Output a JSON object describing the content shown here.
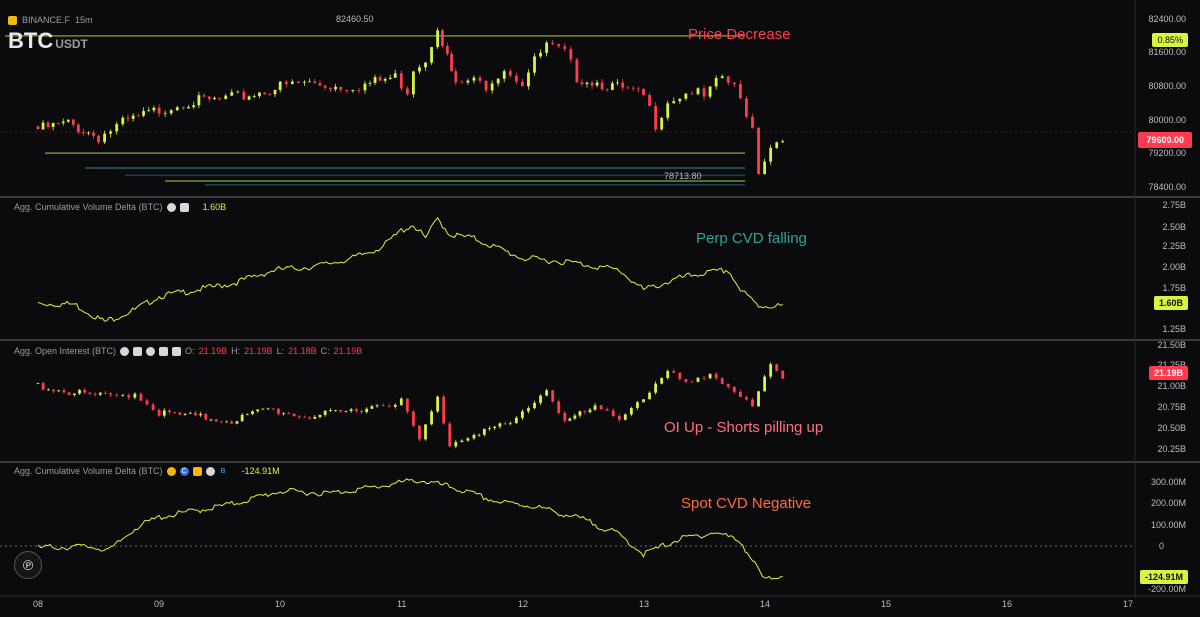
{
  "header": {
    "exchange": "BINANCE.F",
    "interval": "15m",
    "symbol_base": "BTC",
    "symbol_quote": "USDT"
  },
  "price_pane": {
    "high_label": "82460.50",
    "low_label": "78713.80",
    "axis_labels": [
      "82400.00",
      "81600.00",
      "80800.00",
      "80000.00",
      "79200.00",
      "78400.00"
    ],
    "current_tag": "79600.00",
    "pct_tag": "0.85%",
    "annotation": "Price Decrease"
  },
  "cvd_perp_pane": {
    "title": "Agg. Cumulative Volume Delta (BTC)",
    "value": "1.60B",
    "axis_labels": [
      "2.75B",
      "2.50B",
      "2.25B",
      "2.00B",
      "1.75B",
      "1.25B"
    ],
    "current_tag": "1.60B",
    "annotation": "Perp CVD falling"
  },
  "oi_pane": {
    "title": "Agg. Open Interest (BTC)",
    "o_label": "O:",
    "o_value": "21.19B",
    "h_label": "H:",
    "h_value": "21.19B",
    "l_label": "L:",
    "l_value": "21.18B",
    "c_label": "C:",
    "c_value": "21.19B",
    "axis_labels": [
      "21.50B",
      "21.25B",
      "21.00B",
      "20.75B",
      "20.50B",
      "20.25B"
    ],
    "current_tag": "21.19B",
    "annotation": "OI Up - Shorts pilling up"
  },
  "cvd_spot_pane": {
    "title": "Agg. Cumulative Volume Delta (BTC)",
    "value": "-124.91M",
    "axis_labels": [
      "300.00M",
      "200.00M",
      "100.00M",
      "0",
      "-200.00M"
    ],
    "current_tag": "-124.91M",
    "annotation": "Spot CVD Negative"
  },
  "x_axis": [
    "08",
    "09",
    "10",
    "11",
    "12",
    "13",
    "14",
    "15",
    "16",
    "17"
  ],
  "colors": {
    "background": "#0b0b0d",
    "line_yellow": "#d7f541",
    "candle_up": "#d7f541",
    "candle_down": "#ff3b4f",
    "annot_red": "#ff3b4f",
    "annot_teal": "#26a69a",
    "annot_orange": "#ff6b3d"
  },
  "chart_data": [
    {
      "type": "candlestick",
      "ylim": [
        78000,
        82800
      ],
      "points": [
        [
          0.0,
          79750
        ],
        [
          0.25,
          79900
        ],
        [
          0.5,
          79550
        ],
        [
          0.7,
          79900
        ],
        [
          1.0,
          80250
        ],
        [
          1.2,
          80450
        ],
        [
          1.5,
          80500
        ],
        [
          1.7,
          80600
        ],
        [
          2.0,
          80850
        ],
        [
          2.2,
          80950
        ],
        [
          2.5,
          80850
        ],
        [
          2.7,
          80900
        ],
        [
          2.95,
          81100
        ],
        [
          3.05,
          80750
        ],
        [
          3.1,
          81350
        ],
        [
          3.2,
          81550
        ],
        [
          3.3,
          82460
        ],
        [
          3.38,
          81600
        ],
        [
          3.45,
          80850
        ],
        [
          3.55,
          81000
        ],
        [
          3.7,
          80900
        ],
        [
          3.85,
          81350
        ],
        [
          4.0,
          80950
        ],
        [
          4.1,
          81500
        ],
        [
          4.2,
          81900
        ],
        [
          4.35,
          81700
        ],
        [
          4.45,
          81100
        ],
        [
          4.7,
          80900
        ],
        [
          5.0,
          80600
        ],
        [
          5.1,
          79900
        ],
        [
          5.2,
          80500
        ],
        [
          5.4,
          80750
        ],
        [
          5.5,
          80550
        ],
        [
          5.65,
          81100
        ],
        [
          5.75,
          80800
        ],
        [
          5.85,
          80200
        ],
        [
          5.9,
          79800
        ],
        [
          5.95,
          78713
        ],
        [
          6.05,
          79300
        ],
        [
          6.15,
          79600
        ]
      ]
    },
    {
      "type": "line",
      "ylim": [
        1.2,
        2.85
      ],
      "points": [
        [
          0.0,
          1.63
        ],
        [
          0.3,
          1.62
        ],
        [
          0.55,
          1.4
        ],
        [
          0.8,
          1.55
        ],
        [
          1.0,
          1.72
        ],
        [
          1.3,
          1.8
        ],
        [
          1.6,
          1.88
        ],
        [
          1.95,
          2.05
        ],
        [
          2.3,
          2.1
        ],
        [
          2.6,
          2.2
        ],
        [
          2.85,
          2.35
        ],
        [
          3.0,
          2.55
        ],
        [
          3.1,
          2.62
        ],
        [
          3.2,
          2.45
        ],
        [
          3.3,
          2.7
        ],
        [
          3.4,
          2.5
        ],
        [
          3.6,
          2.45
        ],
        [
          4.0,
          2.2
        ],
        [
          4.4,
          2.15
        ],
        [
          4.8,
          2.05
        ],
        [
          5.0,
          1.8
        ],
        [
          5.3,
          1.95
        ],
        [
          5.45,
          2.0
        ],
        [
          5.7,
          2.05
        ],
        [
          5.8,
          1.8
        ],
        [
          5.95,
          1.6
        ],
        [
          6.15,
          1.6
        ]
      ]
    },
    {
      "type": "candlestick",
      "ylim": [
        20.2,
        21.6
      ],
      "points": [
        [
          0.0,
          21.15
        ],
        [
          0.3,
          21.05
        ],
        [
          0.6,
          21.0
        ],
        [
          0.8,
          21.05
        ],
        [
          1.0,
          20.8
        ],
        [
          1.3,
          20.75
        ],
        [
          1.6,
          20.7
        ],
        [
          1.9,
          20.85
        ],
        [
          2.2,
          20.75
        ],
        [
          2.5,
          20.8
        ],
        [
          2.8,
          20.9
        ],
        [
          3.0,
          20.95
        ],
        [
          3.15,
          20.45
        ],
        [
          3.3,
          20.98
        ],
        [
          3.4,
          20.4
        ],
        [
          3.6,
          20.55
        ],
        [
          3.9,
          20.65
        ],
        [
          4.0,
          20.8
        ],
        [
          4.2,
          21.1
        ],
        [
          4.35,
          20.7
        ],
        [
          4.6,
          20.85
        ],
        [
          4.8,
          20.75
        ],
        [
          5.0,
          21.0
        ],
        [
          5.2,
          21.3
        ],
        [
          5.4,
          21.15
        ],
        [
          5.55,
          21.3
        ],
        [
          5.75,
          21.1
        ],
        [
          5.9,
          20.85
        ],
        [
          6.05,
          21.4
        ],
        [
          6.15,
          21.19
        ]
      ]
    },
    {
      "type": "line",
      "ylim": [
        -230,
        350
      ],
      "points": [
        [
          0.0,
          0
        ],
        [
          0.4,
          5
        ],
        [
          0.6,
          -10
        ],
        [
          0.8,
          90
        ],
        [
          1.0,
          140
        ],
        [
          1.3,
          170
        ],
        [
          1.6,
          200
        ],
        [
          2.0,
          260
        ],
        [
          2.4,
          250
        ],
        [
          2.8,
          280
        ],
        [
          3.0,
          300
        ],
        [
          3.15,
          310
        ],
        [
          3.4,
          280
        ],
        [
          3.8,
          210
        ],
        [
          4.1,
          190
        ],
        [
          4.5,
          130
        ],
        [
          4.8,
          60
        ],
        [
          5.0,
          -30
        ],
        [
          5.3,
          40
        ],
        [
          5.6,
          70
        ],
        [
          5.8,
          30
        ],
        [
          5.9,
          -60
        ],
        [
          6.0,
          -150
        ],
        [
          6.15,
          -125
        ]
      ]
    }
  ]
}
